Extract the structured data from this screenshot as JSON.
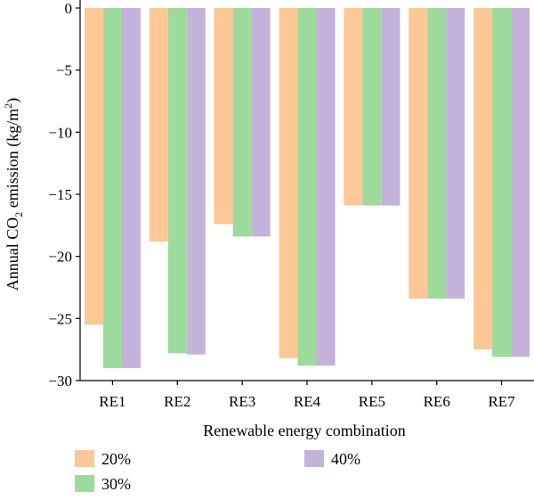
{
  "chart_data": {
    "type": "bar",
    "title": "",
    "xlabel": "Renewable energy combination",
    "ylabel": {
      "prefix": "Annual CO",
      "sub": "2",
      "middle": " emission (kg/m",
      "sup": "2",
      "suffix": ")"
    },
    "ylim": [
      -30,
      0
    ],
    "yticks": [
      0,
      -5,
      -10,
      -15,
      -20,
      -25,
      -30
    ],
    "ytick_labels": [
      "0",
      "−5",
      "−10",
      "−15",
      "−20",
      "−25",
      "−30"
    ],
    "categories": [
      "RE1",
      "RE2",
      "RE3",
      "RE4",
      "RE5",
      "RE6",
      "RE7"
    ],
    "series": [
      {
        "name": "20%",
        "color": "#fdc796",
        "values": [
          -25.5,
          -18.8,
          -17.4,
          -28.2,
          -15.9,
          -23.4,
          -27.5
        ]
      },
      {
        "name": "30%",
        "color": "#9cdb9c",
        "values": [
          -29.0,
          -27.8,
          -18.4,
          -28.8,
          -15.9,
          -23.4,
          -28.1
        ]
      },
      {
        "name": "40%",
        "color": "#c5b2da",
        "values": [
          -29.0,
          -27.9,
          -18.4,
          -28.8,
          -15.9,
          -23.4,
          -28.1
        ]
      }
    ],
    "grid": false,
    "legend_position": "bottom"
  }
}
